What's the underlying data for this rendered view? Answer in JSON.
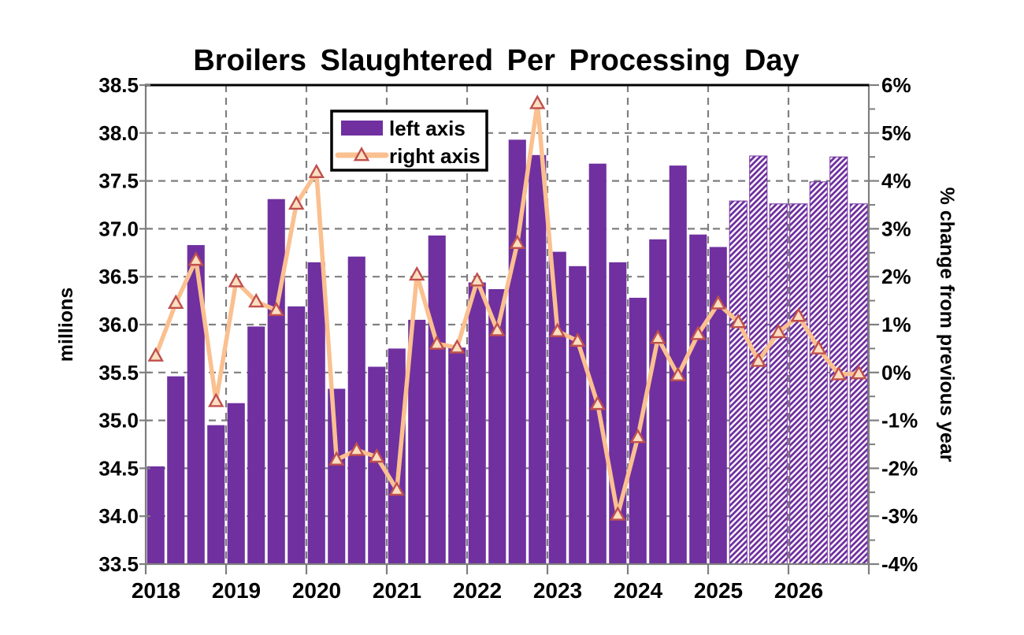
{
  "chart_data": {
    "type": "combo",
    "title": "Broilers Slaughtered Per Processing Day",
    "left_axis": {
      "label": "millions",
      "min": 33.5,
      "max": 38.5,
      "tick_step": 0.5,
      "tick_labels": [
        "38.5",
        "38.0",
        "37.5",
        "37.0",
        "36.5",
        "36.0",
        "35.5",
        "35.0",
        "34.5",
        "34.0",
        "33.5"
      ]
    },
    "right_axis": {
      "label": "% change from previous year",
      "min": -4,
      "max": 6,
      "tick_step": 1,
      "tick_labels": [
        "6%",
        "5%",
        "4%",
        "3%",
        "2%",
        "1%",
        "0%",
        "-1%",
        "-2%",
        "-3%",
        "-4%"
      ]
    },
    "x_axis": {
      "years": [
        "2018",
        "2019",
        "2020",
        "2021",
        "2022",
        "2023",
        "2024",
        "2025",
        "2026"
      ],
      "quarters_per_year": 4
    },
    "legend": [
      {
        "label": "left axis",
        "type": "bar"
      },
      {
        "label": "right axis",
        "type": "line"
      }
    ],
    "series": [
      {
        "name": "left axis",
        "type": "bar",
        "axis": "left",
        "unit": "millions",
        "forecast_start_index": 29,
        "values": [
          34.52,
          35.46,
          36.83,
          34.95,
          35.18,
          35.98,
          37.31,
          36.19,
          36.65,
          35.33,
          36.71,
          35.56,
          35.75,
          36.05,
          36.93,
          35.76,
          36.44,
          36.37,
          37.93,
          37.77,
          36.76,
          36.61,
          37.68,
          36.65,
          36.28,
          36.89,
          37.66,
          36.94,
          36.81,
          37.29,
          37.76,
          37.26,
          37.26,
          37.49,
          37.75,
          37.26
        ]
      },
      {
        "name": "right axis",
        "type": "line",
        "axis": "right",
        "unit": "percent",
        "values": [
          0.35,
          1.45,
          2.35,
          -0.6,
          1.9,
          1.48,
          1.3,
          3.52,
          4.18,
          -1.82,
          -1.62,
          -1.76,
          -2.45,
          2.04,
          0.6,
          0.52,
          1.92,
          0.88,
          2.7,
          5.62,
          0.86,
          0.66,
          -0.66,
          -2.97,
          -1.35,
          0.72,
          -0.06,
          0.8,
          1.44,
          1.05,
          0.24,
          0.84,
          1.18,
          0.5,
          -0.04,
          -0.02
        ]
      }
    ],
    "colors": {
      "bar": "#7030A0",
      "line": "#FAC090",
      "marker_fill": "#FBDFC0",
      "marker_stroke": "#C0504D",
      "grid": "#7F7F7F",
      "axis": "#7F7F7F",
      "frame_top": "#000000",
      "text": "#000000"
    },
    "grid": {
      "horizontal": true,
      "vertical": true,
      "dashed": true
    },
    "legend_position": "top-center-inside"
  }
}
